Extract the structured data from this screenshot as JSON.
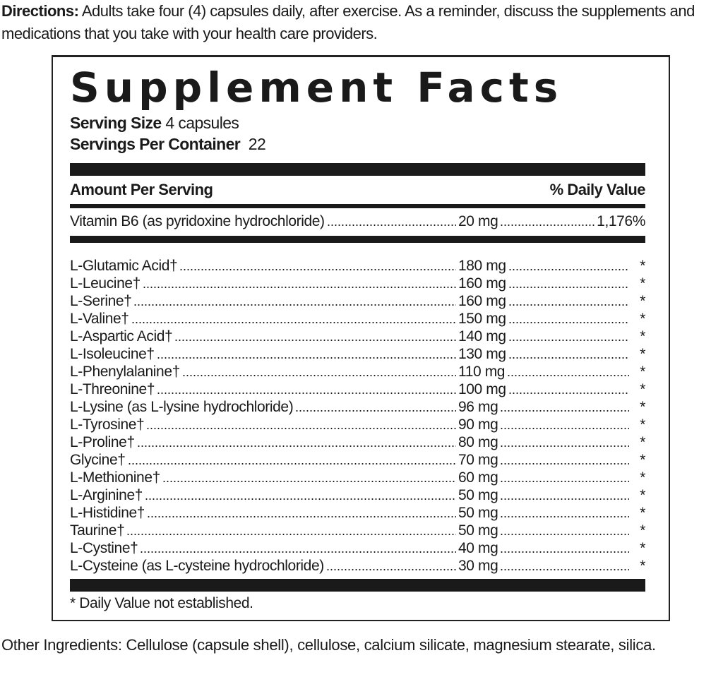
{
  "directions": {
    "label": "Directions:",
    "text": " Adults take four (4) capsules daily, after exercise. As a reminder, discuss the supplements and medications that you take with your health care providers."
  },
  "facts": {
    "title": "Supplement Facts",
    "serving_size_label": "Serving Size",
    "serving_size_value": "4 capsules",
    "servings_per_container_label": "Servings Per Container",
    "servings_per_container_value": "22",
    "amount_header": "Amount Per Serving",
    "dv_header": "% Daily Value",
    "vitamin": {
      "name": "Vitamin B6 (as pyridoxine hydrochloride)",
      "amount": "20 mg",
      "dv": "1,176%"
    },
    "ingredients": [
      {
        "name": "L-Glutamic Acid†",
        "amount": "180 mg",
        "dv": "*"
      },
      {
        "name": "L-Leucine†",
        "amount": "160 mg",
        "dv": "*"
      },
      {
        "name": "L-Serine†",
        "amount": "160 mg",
        "dv": "*"
      },
      {
        "name": "L-Valine†",
        "amount": "150 mg",
        "dv": "*"
      },
      {
        "name": "L-Aspartic Acid†",
        "amount": "140 mg",
        "dv": "*"
      },
      {
        "name": "L-Isoleucine†",
        "amount": "130 mg",
        "dv": "*"
      },
      {
        "name": "L-Phenylalanine†",
        "amount": "110 mg",
        "dv": "*"
      },
      {
        "name": "L-Threonine†",
        "amount": "100 mg",
        "dv": "*"
      },
      {
        "name": "L-Lysine (as L-lysine hydrochloride)",
        "amount": "96 mg",
        "dv": "*"
      },
      {
        "name": "L-Tyrosine†",
        "amount": "90 mg",
        "dv": "*"
      },
      {
        "name": "L-Proline†",
        "amount": "80 mg",
        "dv": "*"
      },
      {
        "name": "Glycine†",
        "amount": "70 mg",
        "dv": "*"
      },
      {
        "name": "L-Methionine†",
        "amount": "60 mg",
        "dv": "*"
      },
      {
        "name": "L-Arginine†",
        "amount": "50 mg",
        "dv": "*"
      },
      {
        "name": "L-Histidine†",
        "amount": "50 mg",
        "dv": "*"
      },
      {
        "name": "Taurine†",
        "amount": "50 mg",
        "dv": "*"
      },
      {
        "name": "L-Cystine†",
        "amount": "40 mg",
        "dv": "*"
      },
      {
        "name": "L-Cysteine  (as L-cysteine hydrochloride)",
        "amount": "30 mg",
        "dv": "*"
      }
    ],
    "footnote": "* Daily Value not established."
  },
  "other_ingredients": "Other Ingredients:  Cellulose (capsule shell), cellulose, calcium silicate, magnesium stearate, silica."
}
